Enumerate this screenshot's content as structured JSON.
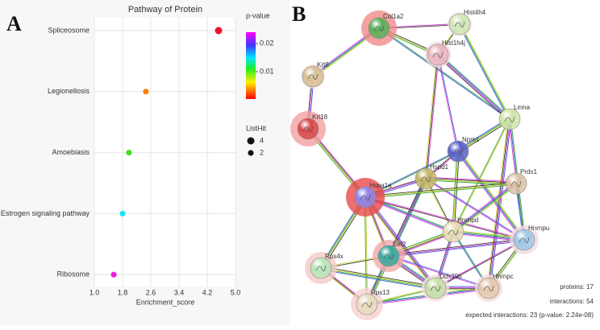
{
  "panels": [
    "A",
    "B"
  ],
  "chart_data": {
    "type": "dot",
    "title": "Pathway of Protein",
    "categories": [
      "Spliceosome",
      "Legionellosis",
      "Amoebiasis",
      "Estrogen signaling pathway",
      "Ribosome"
    ],
    "values": [
      4.52,
      2.46,
      1.98,
      1.8,
      1.55
    ],
    "pvalues": [
      0.0005,
      0.003,
      0.01,
      0.016,
      0.023
    ],
    "listhit": [
      4,
      2,
      2,
      2,
      2
    ],
    "colors": [
      "#e8132a",
      "#f77f0f",
      "#3fe01a",
      "#19e6f2",
      "#ee1fd8"
    ],
    "x_label": "Enrichment_score",
    "xlim": [
      1,
      5
    ],
    "xticks": [
      {
        "value": 1,
        "label": "1.0"
      },
      1.8,
      2.6,
      3.4,
      4.2,
      {
        "value": 5,
        "label": "5.0"
      }
    ],
    "grid": true,
    "color_legend": {
      "title": "p-value",
      "clim": [
        0.0003,
        0.024
      ],
      "cticks": [
        0.01,
        0.02
      ]
    },
    "size_legend": {
      "title": "ListHit",
      "values": [
        4,
        2
      ]
    }
  },
  "network": {
    "nodes": [
      "Col1a2",
      "Hist4h4",
      "Hist1h4j",
      "Krt8",
      "Krt18",
      "Lmna",
      "Npm1",
      "Hspd1",
      "Prdx1",
      "Hspa1a",
      "Hnrnpd",
      "Hnrnpu",
      "Eef2",
      "Rps4x",
      "Ddx39b",
      "Hnrnpc",
      "Rps13"
    ],
    "stats": [
      "proteins: 17",
      "interactions: 54",
      "expected interactions: 23 (p-value: 2.24e-08)"
    ]
  }
}
